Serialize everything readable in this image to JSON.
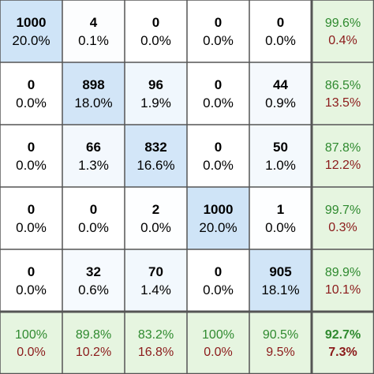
{
  "chart_data": {
    "type": "heatmap",
    "matrix": [
      [
        1000,
        4,
        0,
        0,
        0
      ],
      [
        0,
        898,
        96,
        0,
        44
      ],
      [
        0,
        66,
        832,
        0,
        50
      ],
      [
        0,
        0,
        2,
        1000,
        1
      ],
      [
        0,
        32,
        70,
        0,
        905
      ]
    ],
    "cell_percent": [
      [
        "20.0%",
        "0.1%",
        "0.0%",
        "0.0%",
        "0.0%"
      ],
      [
        "0.0%",
        "18.0%",
        "1.9%",
        "0.0%",
        "0.9%"
      ],
      [
        "0.0%",
        "1.3%",
        "16.6%",
        "0.0%",
        "1.0%"
      ],
      [
        "0.0%",
        "0.0%",
        "0.0%",
        "20.0%",
        "0.0%"
      ],
      [
        "0.0%",
        "0.6%",
        "1.4%",
        "0.0%",
        "18.1%"
      ]
    ],
    "row_summary": [
      {
        "correct": "99.6%",
        "error": "0.4%"
      },
      {
        "correct": "86.5%",
        "error": "13.5%"
      },
      {
        "correct": "87.8%",
        "error": "12.2%"
      },
      {
        "correct": "99.7%",
        "error": "0.3%"
      },
      {
        "correct": "89.9%",
        "error": "10.1%"
      }
    ],
    "column_summary": [
      {
        "correct": "100%",
        "error": "0.0%"
      },
      {
        "correct": "89.8%",
        "error": "10.2%"
      },
      {
        "correct": "83.2%",
        "error": "16.8%"
      },
      {
        "correct": "100%",
        "error": "0.0%"
      },
      {
        "correct": "90.5%",
        "error": "9.5%"
      }
    ],
    "overall": {
      "correct": "92.7%",
      "error": "7.3%"
    },
    "colors": {
      "max_fill": "#cfe4f7",
      "zero_fill": "#ffffff",
      "summary_fill": "#e6f5e0",
      "grid_line": "#555555",
      "correct_text": "#2f8a2f",
      "error_text": "#8b1a1a"
    }
  }
}
